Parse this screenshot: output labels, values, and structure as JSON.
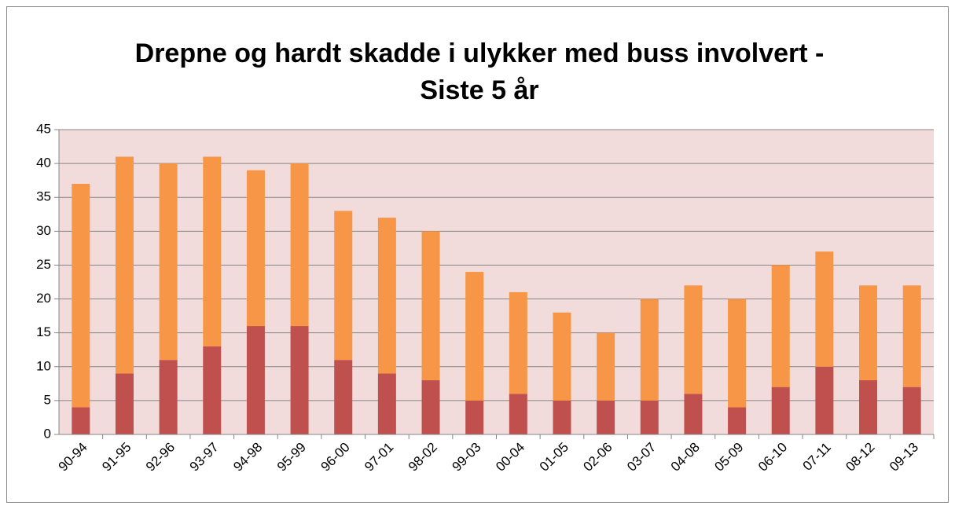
{
  "chart_data": {
    "type": "stacked_bar",
    "title": [
      "Drepne og hardt skadde i ulykker med buss involvert -",
      "Siste 5 år"
    ],
    "categories": [
      "90-94",
      "91-95",
      "92-96",
      "93-97",
      "94-98",
      "95-99",
      "96-00",
      "97-01",
      "98-02",
      "99-03",
      "00-04",
      "01-05",
      "02-06",
      "03-07",
      "04-08",
      "05-09",
      "06-10",
      "07-11",
      "08-12",
      "09-13"
    ],
    "series": [
      {
        "color": "#c0504d",
        "values": [
          4,
          9,
          11,
          13,
          16,
          16,
          11,
          9,
          8,
          5,
          6,
          5,
          5,
          5,
          6,
          4,
          7,
          10,
          8,
          7
        ]
      },
      {
        "color": "#f79646",
        "values": [
          33,
          32,
          29,
          28,
          23,
          24,
          22,
          23,
          22,
          19,
          15,
          13,
          10,
          15,
          16,
          16,
          18,
          17,
          14,
          15
        ]
      }
    ],
    "ylim": [
      0,
      45
    ],
    "yticks": [
      0,
      5,
      10,
      15,
      20,
      25,
      30,
      35,
      40,
      45
    ],
    "grid": true,
    "plot_background": "#f2dcdb"
  }
}
